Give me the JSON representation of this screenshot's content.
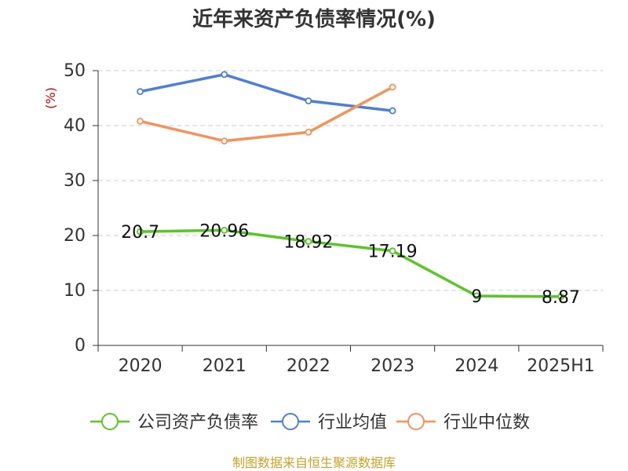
{
  "chart_data": {
    "type": "line",
    "title": "近年来资产负债率情况(%)",
    "y_unit_label": "(%)",
    "categories": [
      "2020",
      "2021",
      "2022",
      "2023",
      "2024",
      "2025H1"
    ],
    "ylim": [
      0,
      50
    ],
    "yticks": [
      "0",
      "10",
      "20",
      "30",
      "40",
      "50"
    ],
    "grid": true,
    "legend_position": "bottom",
    "series": [
      {
        "name": "公司资产负债率",
        "color": "#5ac626",
        "values": [
          20.7,
          20.96,
          18.92,
          17.19,
          9,
          8.87
        ],
        "labels": [
          "20.7",
          "20.96",
          "18.92",
          "17.19",
          "9",
          "8.87"
        ]
      },
      {
        "name": "行业均值",
        "color": "#4e7fd8",
        "values": [
          46.2,
          49.3,
          44.5,
          42.7,
          null,
          null
        ]
      },
      {
        "name": "行业中位数",
        "color": "#f4925a",
        "values": [
          40.8,
          37.2,
          38.8,
          47.0,
          null,
          null
        ]
      }
    ]
  },
  "source_text": "制图数据来自恒生聚源数据库"
}
